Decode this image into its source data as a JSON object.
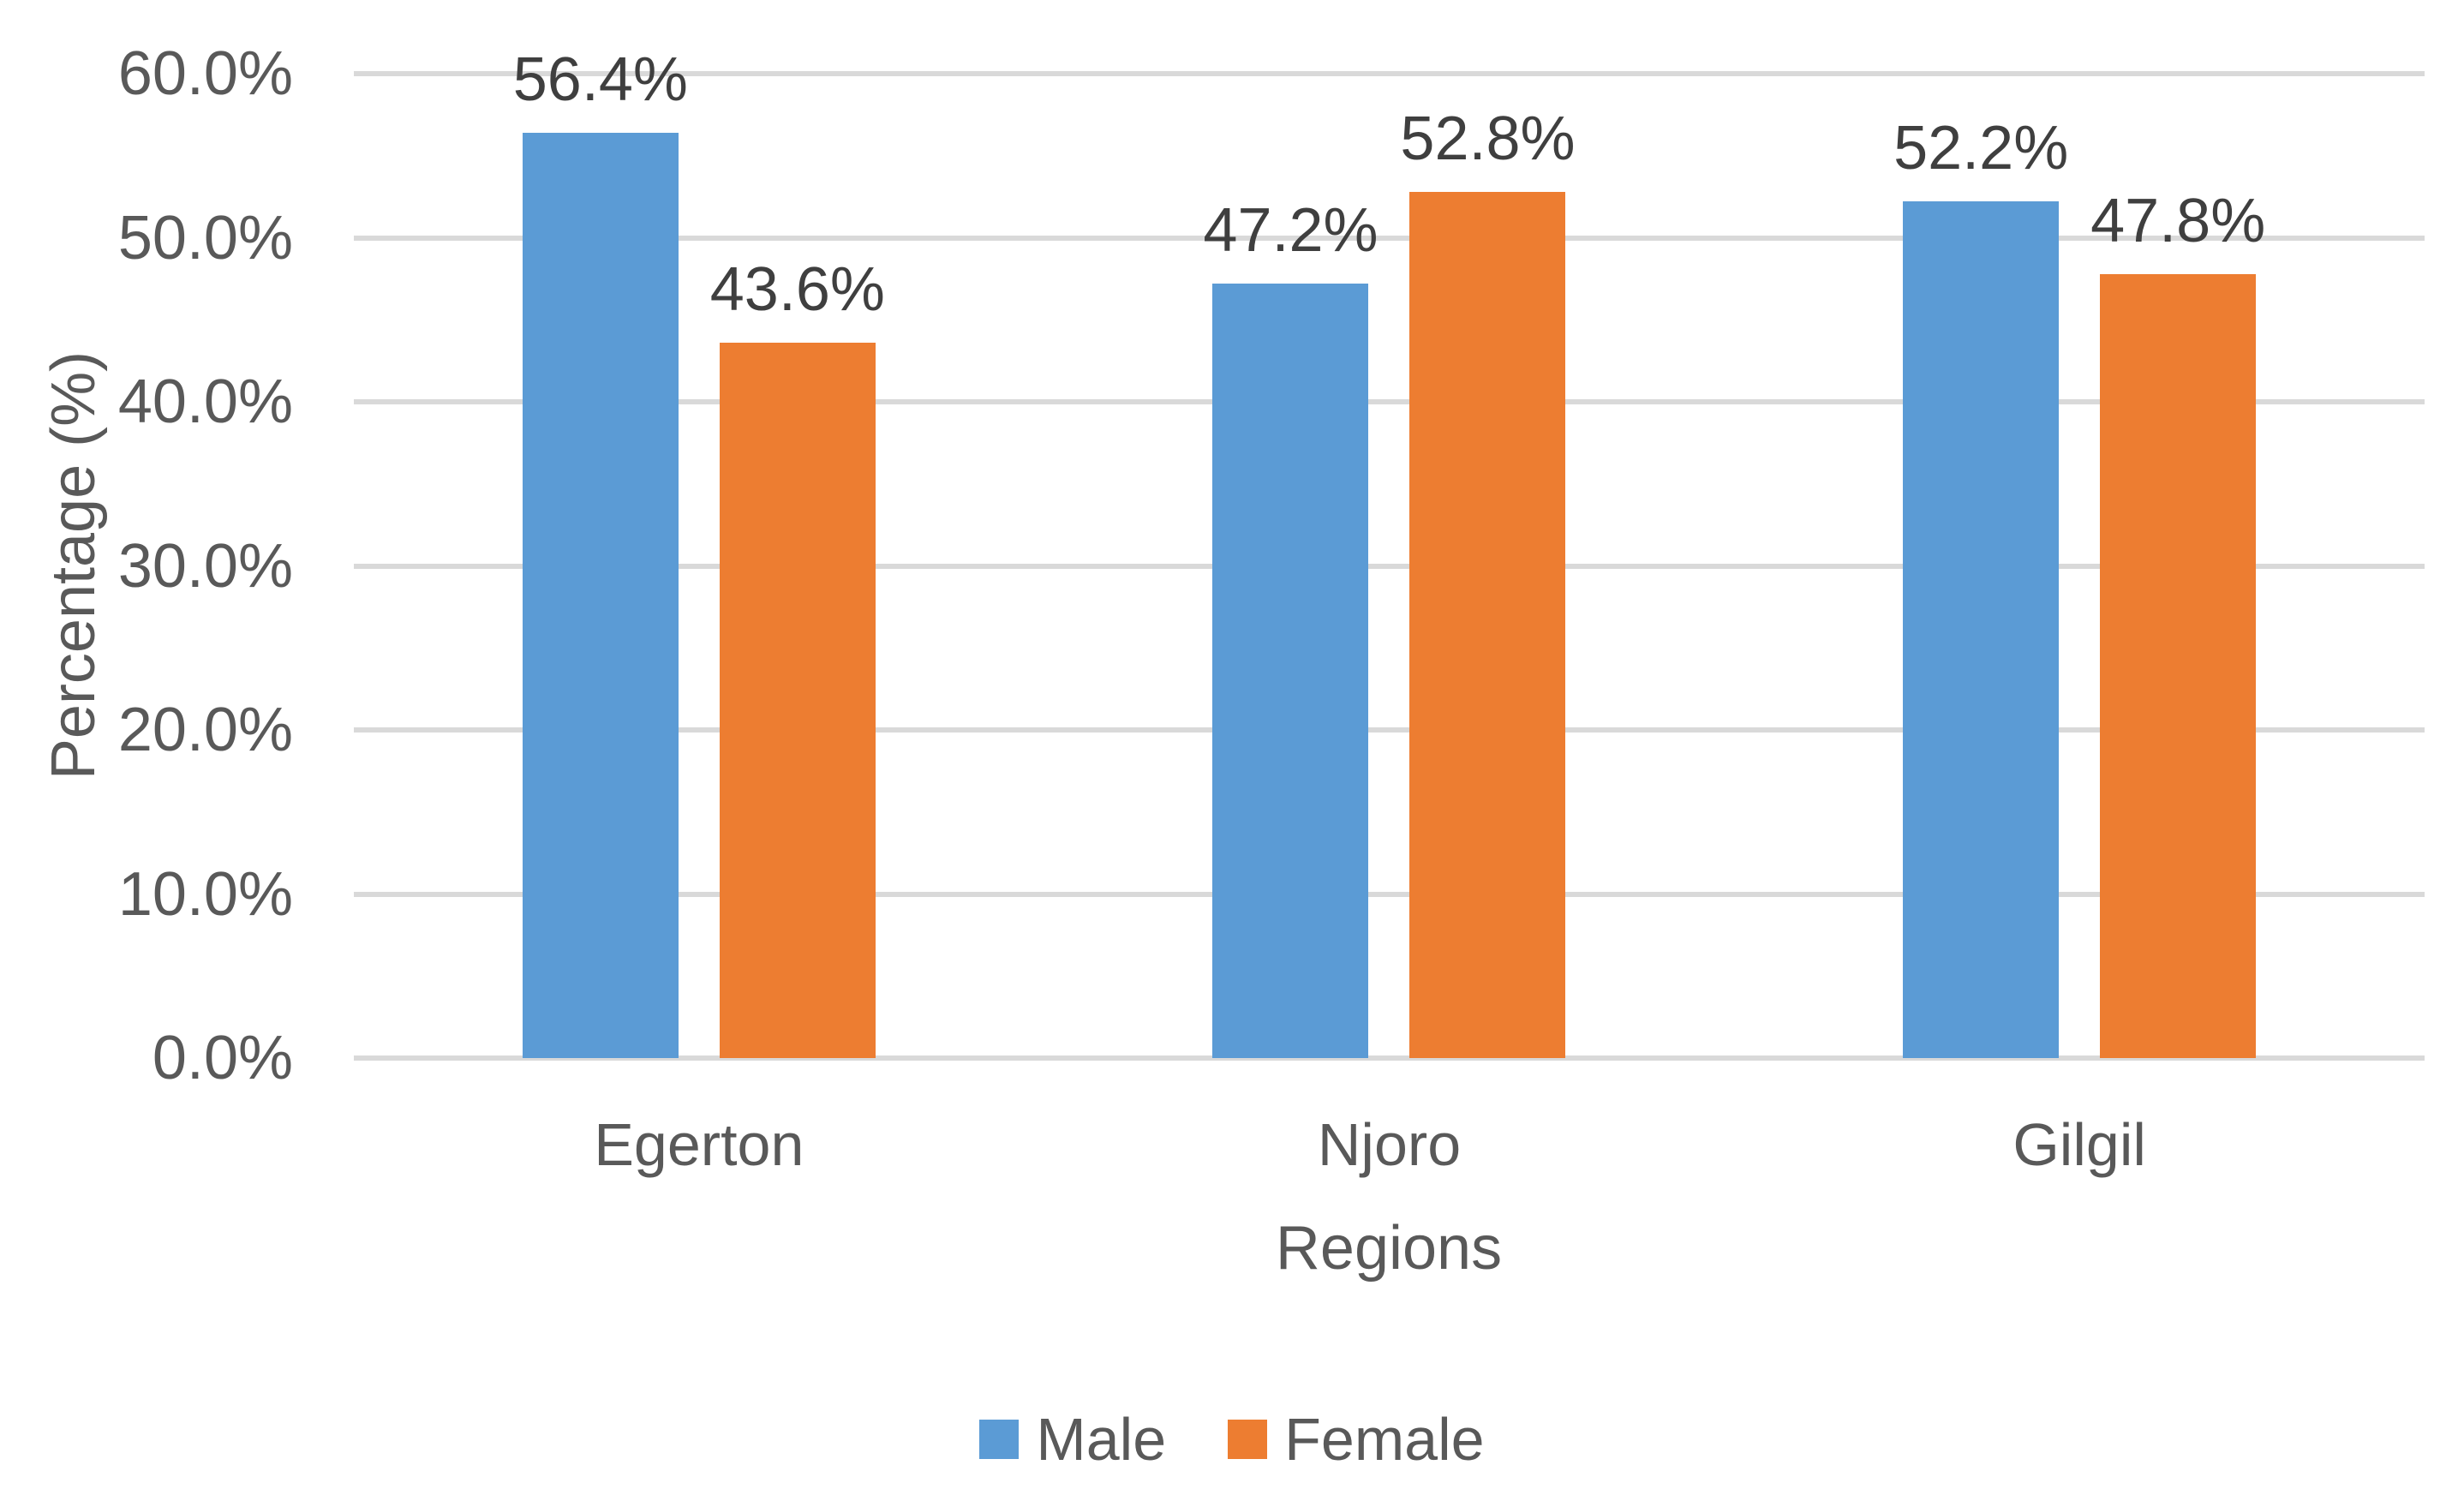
{
  "chart_data": {
    "type": "bar",
    "title": "",
    "xlabel": "Regions",
    "ylabel": "Percentage (%)",
    "categories": [
      "Egerton",
      "Njoro",
      "Gilgil"
    ],
    "series": [
      {
        "name": "Male",
        "color": "#5B9BD5",
        "values": [
          56.4,
          47.2,
          52.2
        ],
        "labels": [
          "56.4%",
          "47.2%",
          "52.2%"
        ]
      },
      {
        "name": "Female",
        "color": "#ED7D31",
        "values": [
          43.6,
          52.8,
          47.8
        ],
        "labels": [
          "43.6%",
          "52.8%",
          "47.8%"
        ]
      }
    ],
    "ylim": [
      0,
      60
    ],
    "ytick_step": 10,
    "yticks": [
      "0.0%",
      "10.0%",
      "20.0%",
      "30.0%",
      "40.0%",
      "50.0%",
      "60.0%"
    ],
    "grid": "horizontal",
    "legend_position": "bottom",
    "colors": {
      "gridline": "#D9D9D9",
      "axis_text": "#595959",
      "data_label": "#3F3F3F",
      "background": "#FFFFFF"
    }
  }
}
